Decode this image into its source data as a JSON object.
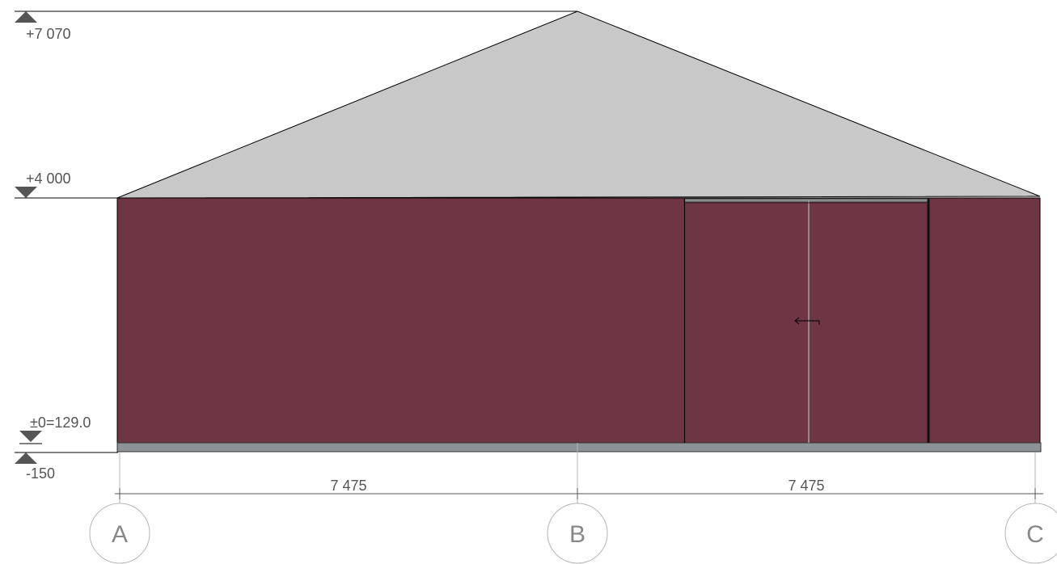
{
  "colors": {
    "roof": "#c8c8c8",
    "wall": "#6e3545",
    "plinth": "#8c9296",
    "marker": "#555555",
    "gridline": "#b5b5b5",
    "outline": "#000000"
  },
  "levels": {
    "ridge": "+7 070",
    "eaves": "+4 000",
    "ground": "±0=129.0",
    "base": "-150"
  },
  "dimensions": {
    "span_ab": "7 475",
    "span_bc": "7 475"
  },
  "grid_axes": {
    "a": "A",
    "b": "B",
    "c": "C"
  },
  "icons": {
    "door_arrow": "left-arrow-icon",
    "level_marker_up": "triangle-up-icon",
    "level_marker_down": "triangle-down-icon"
  }
}
